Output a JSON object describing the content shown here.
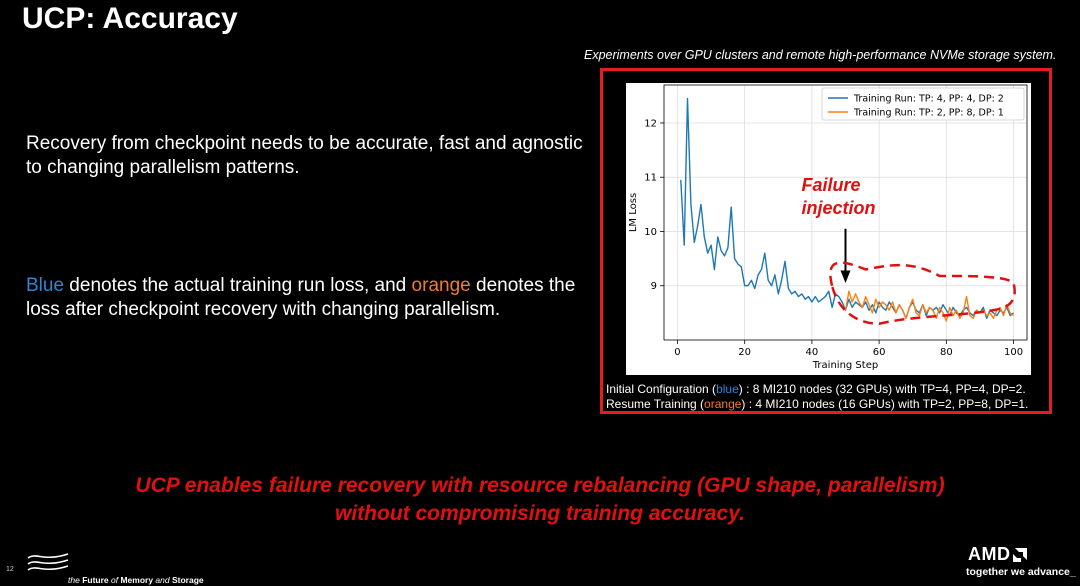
{
  "slide": {
    "title": "UCP: Accuracy",
    "paragraph1": "Recovery from checkpoint needs to be accurate, fast and agnostic to changing parallelism patterns.",
    "paragraph2": {
      "blue_word": "Blue",
      "part1": " denotes the actual training run loss, and ",
      "orange_word": "orange",
      "part2": " denotes the loss after checkpoint recovery with changing parallelism."
    },
    "experiment_caption": "Experiments over GPU clusters and remote high-performance NVMe storage system.",
    "config": {
      "line1_prefix": "Initial Configuration (",
      "line1_color": "blue",
      "line1_suffix": ") :  8 MI210 nodes (32 GPUs) with TP=4, PP=4, DP=2.",
      "line2_prefix": "Resume Training (",
      "line2_color": "orange",
      "line2_suffix": ") : 4 MI210 nodes  (16 GPUs) with TP=2, PP=8, DP=1."
    },
    "conclusion_line1": "UCP enables failure recovery with resource rebalancing (GPU shape, parallelism)",
    "conclusion_line2": "without compromising training accuracy.",
    "page_number": "12",
    "fms_tagline": {
      "the": "the ",
      "future": "Future ",
      "of": "of ",
      "memory": "Memory ",
      "and": "and ",
      "storage": "Storage"
    },
    "amd_logo": "AMD",
    "amd_tagline": "together we advance_",
    "colors": {
      "blue": "#2f86d4",
      "orange": "#f07a32",
      "red": "#e01010",
      "background": "#000000"
    }
  },
  "chart_data": {
    "type": "line",
    "xlabel": "Training Step",
    "ylabel": "LM Loss",
    "xlim": [
      -4,
      104
    ],
    "ylim": [
      8.0,
      12.7
    ],
    "xticks": [
      0,
      20,
      40,
      60,
      80,
      100
    ],
    "yticks": [
      9,
      10,
      11,
      12
    ],
    "grid": true,
    "legend_position": "top-right",
    "annotation": {
      "text_line1": "Failure",
      "text_line2": "injection",
      "at_step": 50
    },
    "series": [
      {
        "name": "Training Run: TP: 4, PP: 4, DP: 2",
        "color": "#1f77b4",
        "x": [
          1,
          2,
          3,
          4,
          5,
          6,
          7,
          8,
          9,
          10,
          11,
          12,
          13,
          14,
          15,
          16,
          17,
          18,
          19,
          20,
          21,
          22,
          23,
          24,
          25,
          26,
          27,
          28,
          29,
          30,
          31,
          32,
          33,
          34,
          35,
          36,
          37,
          38,
          39,
          40,
          41,
          42,
          43,
          44,
          45,
          46,
          47,
          48,
          49,
          50,
          51,
          52,
          53,
          54,
          55,
          56,
          57,
          58,
          59,
          60,
          61,
          62,
          63,
          64,
          65,
          66,
          67,
          68,
          69,
          70,
          71,
          72,
          73,
          74,
          75,
          76,
          77,
          78,
          79,
          80,
          81,
          82,
          83,
          84,
          85,
          86,
          87,
          88,
          89,
          90,
          91,
          92,
          93,
          94,
          95,
          96,
          97,
          98,
          99,
          100
        ],
        "y": [
          10.95,
          9.75,
          12.45,
          10.5,
          9.8,
          10.1,
          10.5,
          9.9,
          9.6,
          9.75,
          9.3,
          9.9,
          9.65,
          9.55,
          9.7,
          10.45,
          9.5,
          9.4,
          9.35,
          9.0,
          9.0,
          9.1,
          8.95,
          9.2,
          9.3,
          9.6,
          9.1,
          9.0,
          9.2,
          8.85,
          9.1,
          9.45,
          8.95,
          8.85,
          8.9,
          8.8,
          8.85,
          8.75,
          8.8,
          8.7,
          8.8,
          8.7,
          8.75,
          8.8,
          8.9,
          8.6,
          8.85,
          8.8,
          8.7,
          8.55,
          8.75,
          8.6,
          8.7,
          8.65,
          8.6,
          8.7,
          8.55,
          8.65,
          8.5,
          8.7,
          8.6,
          8.55,
          8.7,
          8.6,
          8.5,
          8.65,
          8.55,
          8.4,
          8.6,
          8.7,
          8.55,
          8.5,
          8.65,
          8.45,
          8.6,
          8.55,
          8.6,
          8.5,
          8.65,
          8.55,
          8.45,
          8.6,
          8.5,
          8.45,
          8.55,
          8.6,
          8.5,
          8.45,
          8.55,
          8.5,
          8.6,
          8.4,
          8.55,
          8.5,
          8.45,
          8.55,
          8.5,
          8.6,
          8.45,
          8.5
        ]
      },
      {
        "name": "Training Run: TP: 2, PP: 8, DP: 1",
        "color": "#ff7f0e",
        "x": [
          50,
          51,
          52,
          53,
          54,
          55,
          56,
          57,
          58,
          59,
          60,
          61,
          62,
          63,
          64,
          65,
          66,
          67,
          68,
          69,
          70,
          71,
          72,
          73,
          74,
          75,
          76,
          77,
          78,
          79,
          80,
          81,
          82,
          83,
          84,
          85,
          86,
          87,
          88,
          89,
          90,
          91,
          92,
          93,
          94,
          95,
          96,
          97,
          98,
          99,
          100
        ],
        "y": [
          8.55,
          8.9,
          8.7,
          8.85,
          8.7,
          8.6,
          8.8,
          8.65,
          8.5,
          8.75,
          8.6,
          8.7,
          8.65,
          8.55,
          8.7,
          8.5,
          8.65,
          8.55,
          8.4,
          8.6,
          8.75,
          8.5,
          8.45,
          8.65,
          8.5,
          8.6,
          8.55,
          8.4,
          8.6,
          8.5,
          8.35,
          8.6,
          8.45,
          8.55,
          8.4,
          8.5,
          8.8,
          8.45,
          8.4,
          8.55,
          8.5,
          8.55,
          8.45,
          8.5,
          8.4,
          8.55,
          8.6,
          8.45,
          8.65,
          8.5,
          8.45
        ]
      }
    ]
  }
}
